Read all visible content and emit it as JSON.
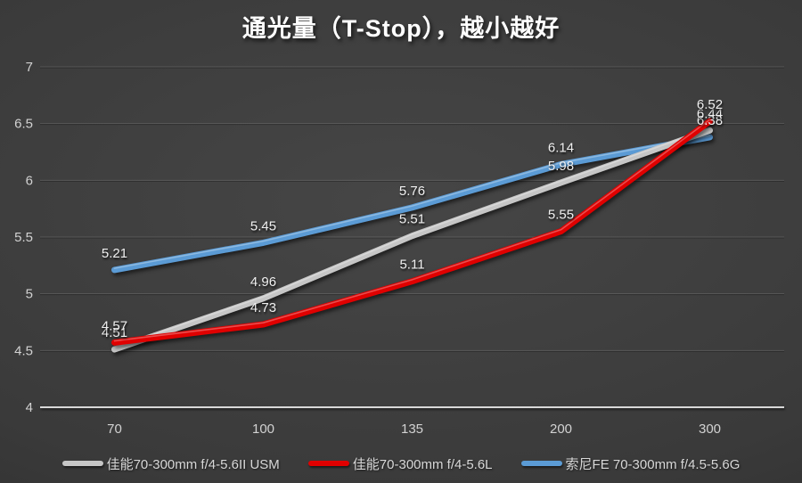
{
  "title": "通光量（T-Stop），越小越好",
  "colors": {
    "background_center": "#464646",
    "background_edge": "#282828",
    "gridline": "rgba(255,255,255,0.14)",
    "axis_line": "#d8d8d8",
    "tick_text": "#d2d2d2",
    "data_label_text": "#f0f0f0",
    "title_text": "#ffffff"
  },
  "chart_data": {
    "type": "line",
    "title": "通光量（T-Stop），越小越好",
    "categories": [
      "70",
      "100",
      "135",
      "200",
      "300"
    ],
    "series": [
      {
        "name": "佳能70-300mm f/4-5.6II USM",
        "color": "#c6c6c6",
        "values": [
          4.51,
          4.96,
          5.51,
          5.98,
          6.44
        ]
      },
      {
        "name": "佳能70-300mm f/4-5.6L",
        "color": "#e00000",
        "values": [
          4.57,
          4.73,
          5.11,
          5.55,
          6.52
        ]
      },
      {
        "name": "索尼FE 70-300mm f/4.5-5.6G",
        "color": "#5b9bd5",
        "values": [
          5.21,
          5.45,
          5.76,
          6.14,
          6.38
        ]
      }
    ],
    "draw_order": [
      2,
      0,
      1
    ],
    "ylim": [
      4,
      7
    ],
    "yticks": [
      "4",
      "4.5",
      "5",
      "5.5",
      "6",
      "6.5",
      "7"
    ],
    "xlabel": "",
    "ylabel": "",
    "grid": true,
    "data_labels": true,
    "legend_position": "bottom"
  }
}
